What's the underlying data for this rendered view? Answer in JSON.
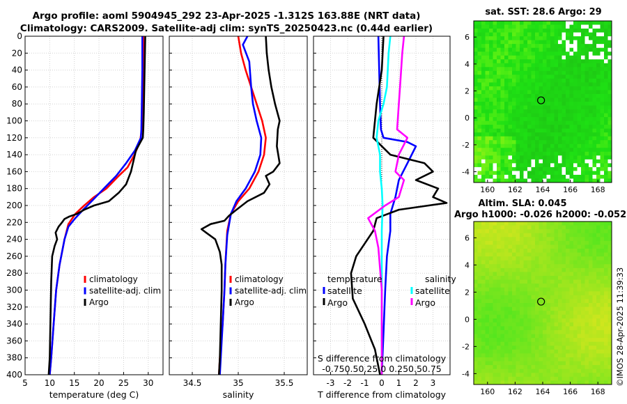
{
  "titles": {
    "line1": "Argo profile: aoml 5904945_292 23-Apr-2025 -1.312S 163.88E (NRT data)",
    "line2": "Climatology: CARS2009. Satellite-adj clim: synTS_20250423.nc (0.44d earlier)",
    "sst": "sat. SST: 28.6 Argo: 29",
    "sla": "Altim. SLA: 0.045",
    "sla2": "Argo h1000: -0.026 h2000: -0.052"
  },
  "footer": "©IMOS 28-Apr-2025 11:39:33",
  "colors": {
    "climatology": "#ff0000",
    "satellite": "#0000ff",
    "argo": "#000000",
    "salinity_sat": "#00ffff",
    "salinity_argo": "#ff00ff"
  },
  "chart_data": [
    {
      "type": "line",
      "xlabel": "temperature (deg C)",
      "ylabel": "",
      "xlim": [
        5,
        33
      ],
      "ylim": [
        0,
        400
      ],
      "xticks": [
        5,
        10,
        15,
        20,
        25,
        30
      ],
      "yticks": [
        0,
        20,
        40,
        60,
        80,
        100,
        120,
        140,
        160,
        180,
        200,
        220,
        240,
        260,
        280,
        300,
        320,
        340,
        360,
        380,
        400
      ],
      "legend": [
        "climatology",
        "satellite-adj. clim",
        "Argo"
      ],
      "series": [
        {
          "name": "climatology",
          "color": "#ff0000",
          "points": [
            [
              29.0,
              0
            ],
            [
              29.0,
              40
            ],
            [
              28.9,
              80
            ],
            [
              28.7,
              110
            ],
            [
              28.3,
              125
            ],
            [
              27.2,
              140
            ],
            [
              25.8,
              155
            ],
            [
              24.0,
              165
            ],
            [
              21.5,
              180
            ],
            [
              19.0,
              190
            ],
            [
              17.0,
              200
            ],
            [
              15.2,
              210
            ],
            [
              13.8,
              222
            ],
            [
              13.0,
              240
            ],
            [
              12.0,
              270
            ],
            [
              11.3,
              300
            ],
            [
              10.8,
              340
            ],
            [
              10.3,
              380
            ],
            [
              10.0,
              400
            ]
          ]
        },
        {
          "name": "satellite-adj. clim",
          "color": "#0000ff",
          "points": [
            [
              28.8,
              0
            ],
            [
              28.8,
              40
            ],
            [
              28.7,
              80
            ],
            [
              28.6,
              110
            ],
            [
              28.5,
              120
            ],
            [
              27.3,
              135
            ],
            [
              25.5,
              150
            ],
            [
              23.5,
              165
            ],
            [
              21.0,
              180
            ],
            [
              18.5,
              195
            ],
            [
              16.8,
              205
            ],
            [
              15.2,
              215
            ],
            [
              13.8,
              225
            ],
            [
              13.0,
              240
            ],
            [
              12.0,
              270
            ],
            [
              11.3,
              300
            ],
            [
              10.8,
              340
            ],
            [
              10.3,
              380
            ],
            [
              10.0,
              400
            ]
          ]
        },
        {
          "name": "Argo",
          "color": "#000000",
          "points": [
            [
              29.4,
              0
            ],
            [
              29.3,
              30
            ],
            [
              29.2,
              60
            ],
            [
              29.1,
              90
            ],
            [
              29.0,
              110
            ],
            [
              28.9,
              120
            ],
            [
              27.5,
              135
            ],
            [
              26.5,
              160
            ],
            [
              25.5,
              175
            ],
            [
              24.0,
              185
            ],
            [
              22.0,
              195
            ],
            [
              19.0,
              200
            ],
            [
              17.0,
              205
            ],
            [
              15.5,
              210
            ],
            [
              14.0,
              213
            ],
            [
              13.0,
              216
            ],
            [
              12.5,
              220
            ],
            [
              11.8,
              225
            ],
            [
              11.2,
              232
            ],
            [
              11.5,
              240
            ],
            [
              11.0,
              248
            ],
            [
              10.5,
              260
            ],
            [
              10.3,
              290
            ],
            [
              10.2,
              320
            ],
            [
              10.1,
              350
            ],
            [
              10.0,
              380
            ],
            [
              9.8,
              400
            ]
          ]
        }
      ]
    },
    {
      "type": "line",
      "xlabel": "salinity",
      "xlim": [
        34.25,
        35.75
      ],
      "ylim": [
        0,
        400
      ],
      "xticks": [
        34.5,
        35,
        35.5
      ],
      "legend": [
        "climatology",
        "satellite-adj. clim",
        "Argo"
      ],
      "series": [
        {
          "name": "climatology",
          "color": "#ff0000",
          "points": [
            [
              35.0,
              0
            ],
            [
              35.03,
              20
            ],
            [
              35.08,
              40
            ],
            [
              35.14,
              60
            ],
            [
              35.2,
              80
            ],
            [
              35.26,
              100
            ],
            [
              35.3,
              120
            ],
            [
              35.28,
              140
            ],
            [
              35.22,
              160
            ],
            [
              35.12,
              180
            ],
            [
              35.0,
              195
            ],
            [
              34.92,
              210
            ],
            [
              34.88,
              230
            ],
            [
              34.87,
              250
            ],
            [
              34.86,
              270
            ],
            [
              34.85,
              300
            ],
            [
              34.83,
              340
            ],
            [
              34.8,
              380
            ],
            [
              34.79,
              400
            ]
          ]
        },
        {
          "name": "satellite-adj. clim",
          "color": "#0000ff",
          "points": [
            [
              35.1,
              0
            ],
            [
              35.05,
              10
            ],
            [
              35.12,
              30
            ],
            [
              35.14,
              60
            ],
            [
              35.16,
              80
            ],
            [
              35.2,
              100
            ],
            [
              35.25,
              120
            ],
            [
              35.24,
              140
            ],
            [
              35.18,
              160
            ],
            [
              35.08,
              180
            ],
            [
              34.98,
              195
            ],
            [
              34.92,
              210
            ],
            [
              34.88,
              235
            ],
            [
              34.86,
              270
            ],
            [
              34.85,
              300
            ],
            [
              34.83,
              340
            ],
            [
              34.81,
              380
            ],
            [
              34.8,
              400
            ]
          ]
        },
        {
          "name": "Argo",
          "color": "#000000",
          "points": [
            [
              35.3,
              0
            ],
            [
              35.31,
              20
            ],
            [
              35.33,
              40
            ],
            [
              35.36,
              60
            ],
            [
              35.4,
              80
            ],
            [
              35.45,
              100
            ],
            [
              35.43,
              110
            ],
            [
              35.42,
              130
            ],
            [
              35.45,
              150
            ],
            [
              35.38,
              160
            ],
            [
              35.3,
              165
            ],
            [
              35.34,
              175
            ],
            [
              35.28,
              185
            ],
            [
              35.1,
              195
            ],
            [
              34.98,
              205
            ],
            [
              34.9,
              212
            ],
            [
              34.85,
              218
            ],
            [
              34.7,
              222
            ],
            [
              34.6,
              228
            ],
            [
              34.65,
              232
            ],
            [
              34.75,
              240
            ],
            [
              34.8,
              255
            ],
            [
              34.82,
              270
            ],
            [
              34.82,
              300
            ],
            [
              34.81,
              340
            ],
            [
              34.8,
              380
            ],
            [
              34.79,
              400
            ]
          ]
        }
      ]
    },
    {
      "type": "line",
      "xlabel": "T difference from climatology",
      "xlim": [
        -4,
        4
      ],
      "ylim": [
        0,
        400
      ],
      "xticks": [
        -3,
        -2,
        -1,
        0,
        1,
        2,
        3
      ],
      "top_axis_label": "S difference from climatology",
      "top_ticks": [
        "-0.75",
        "0.5",
        "0.25",
        "0",
        "0.25",
        "0.5",
        "0.75"
      ],
      "top_tick_text": "-0.750.50.25 0 0.250.50.75",
      "legend_groups": [
        {
          "title": "temperature",
          "items": [
            "satellite",
            "Argo"
          ]
        },
        {
          "title": "salinity",
          "items": [
            "satellite",
            "Argo"
          ]
        }
      ],
      "series": [
        {
          "name": "temperature satellite",
          "color": "#0000ff",
          "points": [
            [
              -0.2,
              0
            ],
            [
              -0.15,
              40
            ],
            [
              -0.1,
              80
            ],
            [
              -0.05,
              110
            ],
            [
              0.1,
              120
            ],
            [
              1.5,
              125
            ],
            [
              2.0,
              130
            ],
            [
              1.5,
              150
            ],
            [
              1.0,
              170
            ],
            [
              0.8,
              190
            ],
            [
              0.5,
              210
            ],
            [
              0.5,
              230
            ],
            [
              0.3,
              260
            ],
            [
              0.2,
              300
            ],
            [
              0.1,
              350
            ],
            [
              0.0,
              400
            ]
          ]
        },
        {
          "name": "temperature Argo",
          "color": "#000000",
          "points": [
            [
              0.1,
              0
            ],
            [
              0.0,
              40
            ],
            [
              -0.3,
              80
            ],
            [
              -0.5,
              120
            ],
            [
              0.5,
              140
            ],
            [
              2.5,
              150
            ],
            [
              3.0,
              160
            ],
            [
              2.0,
              170
            ],
            [
              3.3,
              180
            ],
            [
              3.0,
              190
            ],
            [
              3.8,
              197
            ],
            [
              1.0,
              205
            ],
            [
              -0.3,
              215
            ],
            [
              -0.5,
              230
            ],
            [
              -1.0,
              245
            ],
            [
              -1.5,
              260
            ],
            [
              -1.8,
              280
            ],
            [
              -1.7,
              310
            ],
            [
              -1.0,
              340
            ],
            [
              -0.4,
              370
            ],
            [
              -0.1,
              400
            ]
          ]
        },
        {
          "name": "salinity satellite",
          "color": "#00ffff",
          "points": [
            [
              0.5,
              0
            ],
            [
              0.4,
              20
            ],
            [
              0.3,
              60
            ],
            [
              0.1,
              80
            ],
            [
              -0.2,
              100
            ],
            [
              -0.3,
              120
            ],
            [
              -0.1,
              140
            ],
            [
              -0.1,
              160
            ],
            [
              0.0,
              180
            ],
            [
              0.05,
              200
            ],
            [
              0.0,
              230
            ],
            [
              0.0,
              270
            ],
            [
              0.0,
              320
            ],
            [
              0.0,
              400
            ]
          ]
        },
        {
          "name": "salinity Argo",
          "color": "#ff00ff",
          "points": [
            [
              1.3,
              0
            ],
            [
              1.2,
              20
            ],
            [
              1.1,
              50
            ],
            [
              1.0,
              80
            ],
            [
              0.9,
              110
            ],
            [
              1.5,
              120
            ],
            [
              1.0,
              140
            ],
            [
              0.8,
              160
            ],
            [
              1.3,
              170
            ],
            [
              1.0,
              190
            ],
            [
              0.2,
              200
            ],
            [
              -0.8,
              215
            ],
            [
              -0.4,
              230
            ],
            [
              -0.2,
              250
            ],
            [
              0.0,
              300
            ],
            [
              0.0,
              400
            ]
          ]
        }
      ]
    },
    {
      "type": "heatmap",
      "title": "sat. SST: 28.6 Argo: 29",
      "xlim": [
        159,
        169
      ],
      "ylim": [
        -4.8,
        7.2
      ],
      "xticks": [
        160,
        162,
        164,
        166,
        168
      ],
      "yticks": [
        -4,
        -2,
        0,
        2,
        4,
        6
      ],
      "argo_marker": [
        163.88,
        1.3
      ]
    },
    {
      "type": "heatmap",
      "title": "Altim. SLA: 0.045",
      "xlim": [
        159,
        169
      ],
      "ylim": [
        -4.8,
        7.2
      ],
      "xticks": [
        160,
        162,
        164,
        166,
        168
      ],
      "yticks": [
        -4,
        -2,
        0,
        2,
        4,
        6
      ],
      "argo_marker": [
        163.88,
        1.3
      ]
    }
  ]
}
